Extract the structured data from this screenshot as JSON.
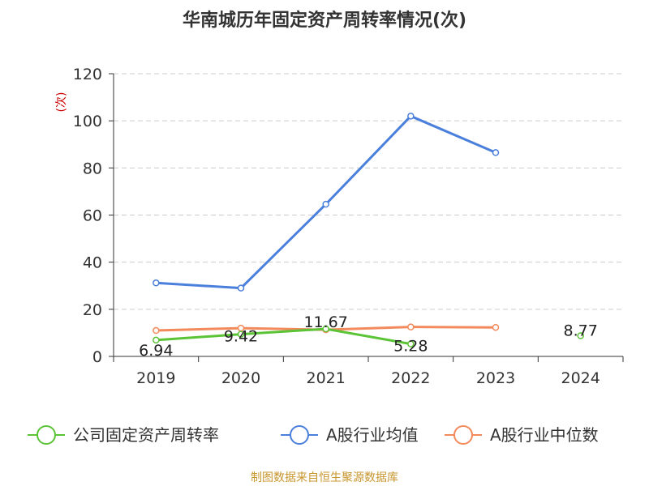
{
  "chart_data": {
    "type": "line",
    "title": "华南城历年固定资产周转率情况(次)",
    "ylabel": "(次)",
    "xlabel": "",
    "categories": [
      "2019",
      "2020",
      "2021",
      "2022",
      "2023",
      "2024"
    ],
    "ylim": [
      0,
      120
    ],
    "yticks": [
      "0",
      "20",
      "40",
      "60",
      "80",
      "100",
      "120"
    ],
    "grid": true,
    "legend_position": "bottom",
    "series": [
      {
        "name": "公司固定资产周转率",
        "color": "#5bc336",
        "values": [
          6.94,
          9.42,
          11.67,
          5.28,
          null,
          8.77
        ],
        "labels": [
          "6.94",
          "9.42",
          "11.67",
          "5.28",
          "",
          "8.77"
        ]
      },
      {
        "name": "A股行业均值",
        "color": "#4a7fdc",
        "values": [
          31.2,
          29.0,
          64.6,
          102.0,
          86.5,
          null
        ]
      },
      {
        "name": "A股行业中位数",
        "color": "#f28a5c",
        "values": [
          11.0,
          12.0,
          11.3,
          12.5,
          12.3,
          null
        ]
      }
    ],
    "source": "制图数据来自恒生聚源数据库"
  }
}
